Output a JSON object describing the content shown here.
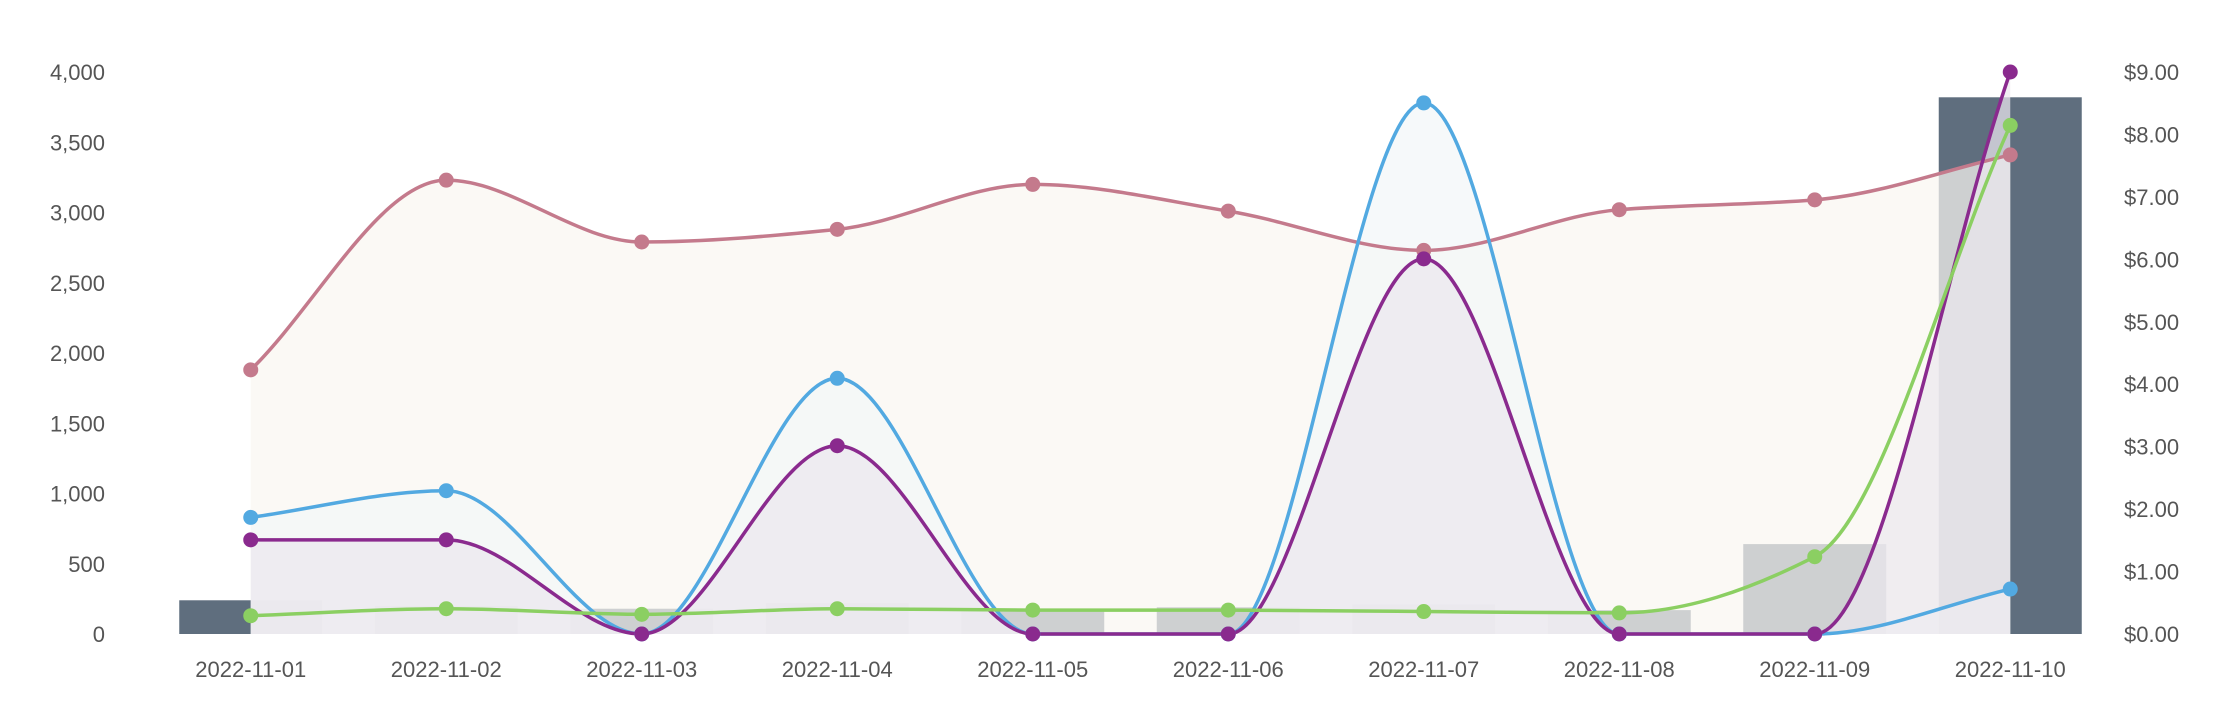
{
  "chart_data": {
    "type": "bar",
    "categories": [
      "2022-11-01",
      "2022-11-02",
      "2022-11-03",
      "2022-11-04",
      "2022-11-05",
      "2022-11-06",
      "2022-11-07",
      "2022-11-08",
      "2022-11-09",
      "2022-11-10"
    ],
    "left_axis": {
      "ylim": [
        0,
        4000
      ],
      "ticks": [
        0,
        500,
        1000,
        1500,
        2000,
        2500,
        3000,
        3500,
        4000
      ],
      "tick_labels": [
        "0",
        "500",
        "1,000",
        "1,500",
        "2,000",
        "2,500",
        "3,000",
        "3,500",
        "4,000"
      ]
    },
    "right_axis": {
      "ylim": [
        0,
        9
      ],
      "ticks": [
        0,
        1,
        2,
        3,
        4,
        5,
        6,
        7,
        8,
        9
      ],
      "tick_labels": [
        "$0.00",
        "$1.00",
        "$2.00",
        "$3.00",
        "$4.00",
        "$5.00",
        "$6.00",
        "$7.00",
        "$8.00",
        "$9.00"
      ]
    },
    "grid": false,
    "legend": "none",
    "series": [
      {
        "kind": "bar",
        "axis": "left",
        "color": "#5f6e7e",
        "values": [
          240,
          200,
          180,
          220,
          180,
          190,
          210,
          170,
          640,
          3820
        ]
      },
      {
        "kind": "area-line",
        "axis": "left",
        "color": "#c47a8c",
        "fill": "#f9f6f1",
        "values": [
          1880,
          3230,
          2790,
          2880,
          3200,
          3010,
          2730,
          3020,
          3090,
          3410
        ]
      },
      {
        "kind": "area-line",
        "axis": "left",
        "color": "#52a9e1",
        "fill": "#f3f7f8",
        "values": [
          830,
          1020,
          0,
          1820,
          0,
          0,
          3780,
          0,
          0,
          320
        ]
      },
      {
        "kind": "area-line",
        "axis": "left",
        "color": "#8a2a8e",
        "fill": "#ebe7ee",
        "values": [
          670,
          670,
          0,
          1340,
          0,
          0,
          2670,
          0,
          0,
          4000
        ]
      },
      {
        "kind": "line",
        "axis": "left",
        "color": "#8bcf62",
        "values": [
          130,
          180,
          140,
          180,
          170,
          170,
          160,
          150,
          550,
          3620
        ]
      }
    ]
  }
}
